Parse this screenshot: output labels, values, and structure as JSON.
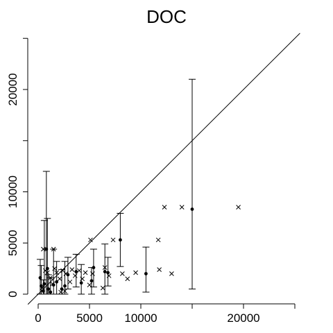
{
  "chart_data": {
    "type": "scatter",
    "title": "DOC",
    "xlabel": "",
    "ylabel": "",
    "xlim": [
      0,
      25000
    ],
    "ylim": [
      0,
      25000
    ],
    "x_ticks": [
      0,
      5000,
      10000,
      20000
    ],
    "x_tick_labels": [
      "0",
      "5000",
      "10000",
      "20000"
    ],
    "x_minor_ticks": [
      15000,
      25000
    ],
    "y_ticks": [
      0,
      5000,
      10000,
      20000
    ],
    "y_tick_labels": [
      "0",
      "5000",
      "10000",
      "20000"
    ],
    "y_minor_ticks": [
      15000,
      25000
    ],
    "reference_line": "y = x",
    "grid": false,
    "legend": null,
    "series": [
      {
        "marker": "filled-circle",
        "points": [
          {
            "x": 15000,
            "y": 8300,
            "low": 500,
            "high": 21000
          },
          {
            "x": 8000,
            "y": 5300,
            "low": 2700,
            "high": 7900
          },
          {
            "x": 10500,
            "y": 2000,
            "low": 200,
            "high": 4600
          },
          {
            "x": 6800,
            "y": 2100,
            "low": 800,
            "high": 3600
          },
          {
            "x": 5400,
            "y": 2600,
            "low": 700,
            "high": 4400
          },
          {
            "x": 5200,
            "y": 1300,
            "low": 0,
            "high": 2600
          },
          {
            "x": 800,
            "y": 4400,
            "low": 0,
            "high": 12000
          },
          {
            "x": 1500,
            "y": 900,
            "low": 0,
            "high": 4400
          },
          {
            "x": 2300,
            "y": 500,
            "low": 0,
            "high": 2400
          },
          {
            "x": 2900,
            "y": 1900,
            "low": 500,
            "high": 3600
          },
          {
            "x": 3700,
            "y": 2200,
            "low": 700,
            "high": 3900
          },
          {
            "x": 300,
            "y": 800,
            "low": 0,
            "high": 2800
          },
          {
            "x": 600,
            "y": 1000,
            "low": 0,
            "high": 7200
          },
          {
            "x": 1200,
            "y": 200,
            "low": 0,
            "high": 1600
          },
          {
            "x": 1800,
            "y": 1200,
            "low": 0,
            "high": 3200
          },
          {
            "x": 900,
            "y": 2500,
            "low": 0,
            "high": 7400
          },
          {
            "x": 6500,
            "y": 2200,
            "low": 0,
            "high": 4900
          },
          {
            "x": 200,
            "y": 1600,
            "low": 0,
            "high": 3400
          },
          {
            "x": 2600,
            "y": 800,
            "low": 0,
            "high": 3200
          },
          {
            "x": 4200,
            "y": 1100,
            "low": 0,
            "high": 2900
          },
          {
            "x": 1000,
            "y": 500,
            "low": 0,
            "high": 1900
          },
          {
            "x": 500,
            "y": 300,
            "low": 0,
            "high": 1400
          }
        ]
      },
      {
        "marker": "cross",
        "points": [
          {
            "x": 19500,
            "y": 8500
          },
          {
            "x": 14000,
            "y": 8500
          },
          {
            "x": 12300,
            "y": 8500
          },
          {
            "x": 11700,
            "y": 5300
          },
          {
            "x": 13000,
            "y": 2000
          },
          {
            "x": 11800,
            "y": 2400
          },
          {
            "x": 9500,
            "y": 2100
          },
          {
            "x": 8700,
            "y": 1500
          },
          {
            "x": 8200,
            "y": 2000
          },
          {
            "x": 7300,
            "y": 5300
          },
          {
            "x": 6900,
            "y": 1800
          },
          {
            "x": 6500,
            "y": 2600
          },
          {
            "x": 6300,
            "y": 600
          },
          {
            "x": 5100,
            "y": 5300
          },
          {
            "x": 5300,
            "y": 2000
          },
          {
            "x": 5000,
            "y": 900
          },
          {
            "x": 4600,
            "y": 2100
          },
          {
            "x": 4300,
            "y": 1500
          },
          {
            "x": 4000,
            "y": 2300
          },
          {
            "x": 3600,
            "y": 1800
          },
          {
            "x": 3300,
            "y": 2400
          },
          {
            "x": 3100,
            "y": 1200
          },
          {
            "x": 2700,
            "y": 2000
          },
          {
            "x": 2400,
            "y": 2300
          },
          {
            "x": 2100,
            "y": 1500
          },
          {
            "x": 1800,
            "y": 2100
          },
          {
            "x": 1600,
            "y": 2500
          },
          {
            "x": 1500,
            "y": 4400
          },
          {
            "x": 1200,
            "y": 1600
          },
          {
            "x": 700,
            "y": 2300
          },
          {
            "x": 500,
            "y": 4400
          },
          {
            "x": 400,
            "y": 600
          },
          {
            "x": 2200,
            "y": 200
          },
          {
            "x": 2600,
            "y": 300
          },
          {
            "x": 1400,
            "y": 1000
          },
          {
            "x": 900,
            "y": 2100
          }
        ]
      }
    ]
  }
}
